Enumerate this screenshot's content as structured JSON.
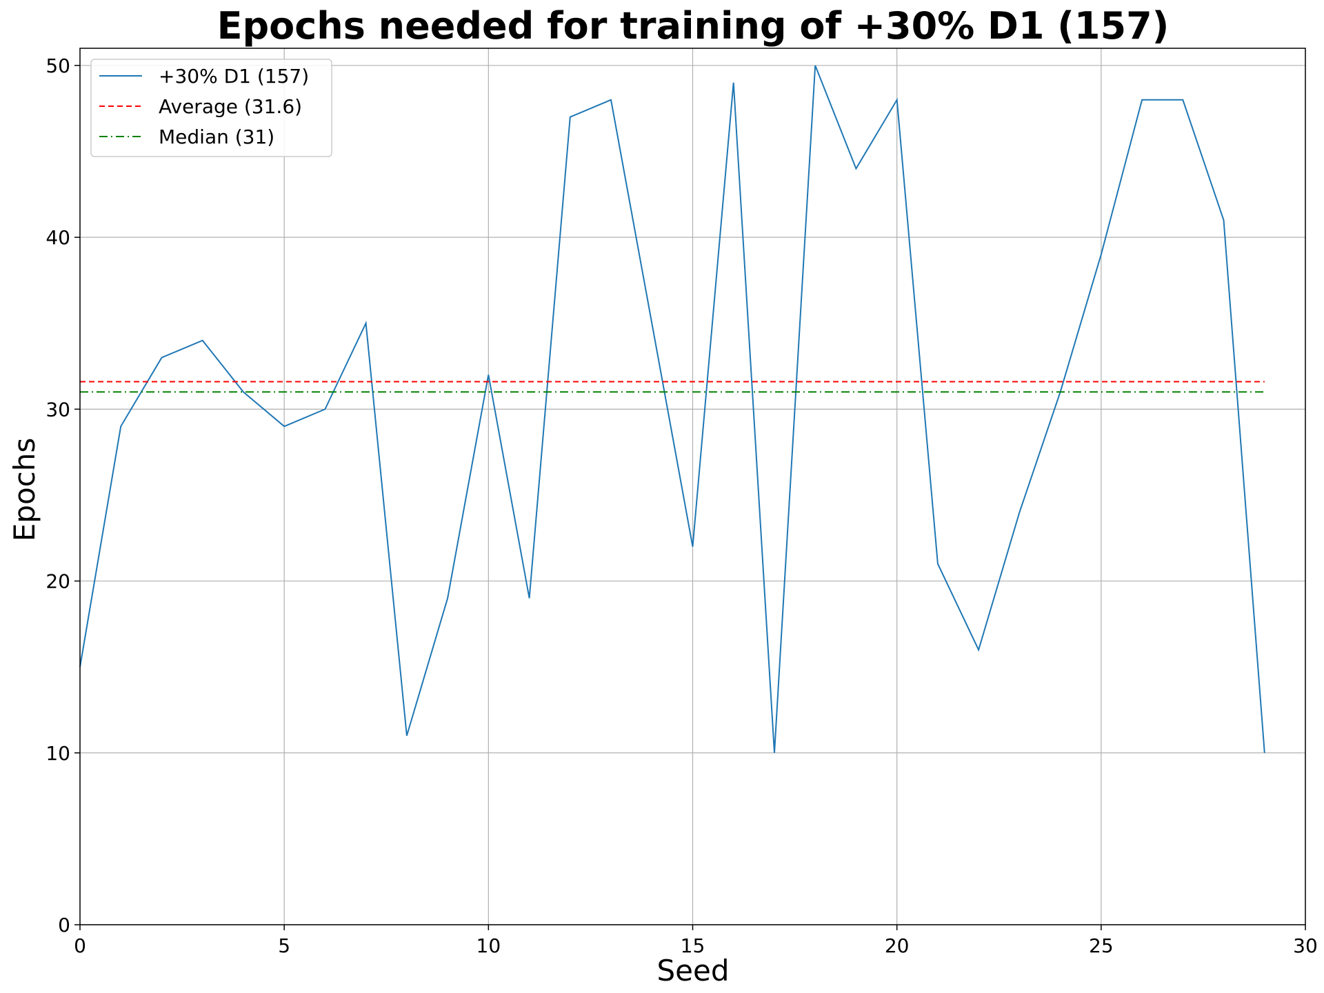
{
  "chart_data": {
    "type": "line",
    "title": "Epochs needed for training of +30% D1 (157)",
    "xlabel": "Seed",
    "ylabel": "Epochs",
    "xlim": [
      0,
      30
    ],
    "ylim": [
      0,
      51
    ],
    "xticks": [
      0,
      5,
      10,
      15,
      20,
      25,
      30
    ],
    "yticks": [
      0,
      10,
      20,
      30,
      40,
      50
    ],
    "grid": true,
    "legend_position": "top-left",
    "series": [
      {
        "name": "+30% D1 (157)",
        "style": "solid",
        "color": "#1f77b4",
        "x": [
          0,
          1,
          2,
          3,
          4,
          5,
          6,
          7,
          8,
          9,
          10,
          11,
          12,
          13,
          14,
          15,
          16,
          17,
          18,
          19,
          20,
          21,
          22,
          23,
          24,
          25,
          26,
          27,
          28,
          29
        ],
        "values": [
          15,
          29,
          33,
          34,
          31,
          29,
          30,
          35,
          11,
          19,
          32,
          19,
          47,
          48,
          35,
          22,
          49,
          10,
          50,
          44,
          48,
          21,
          16,
          24,
          31,
          39,
          48,
          48,
          41,
          10
        ]
      },
      {
        "name": "Average (31.6)",
        "style": "dashed",
        "color": "#ff0000",
        "x": [
          0,
          29
        ],
        "values": [
          31.6,
          31.6
        ]
      },
      {
        "name": "Median (31)",
        "style": "dashdot",
        "color": "#008000",
        "x": [
          0,
          29
        ],
        "values": [
          31,
          31
        ]
      }
    ]
  }
}
